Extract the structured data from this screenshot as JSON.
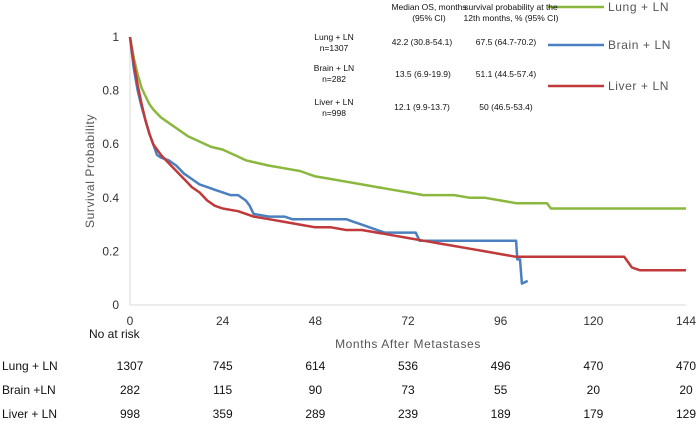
{
  "chart_data": {
    "type": "line",
    "xlabel": "Months After Metastases",
    "ylabel": "Survival Probability",
    "xlim": [
      0,
      144
    ],
    "ylim": [
      0,
      1
    ],
    "xticks": [
      "0",
      "24",
      "48",
      "72",
      "96",
      "120",
      "144"
    ],
    "yticks": [
      "0",
      "0.2",
      "0.4",
      "0.6",
      "0.8",
      "1"
    ],
    "series": [
      {
        "name": "Lung + LN",
        "color": "#8ab83f",
        "points": [
          [
            0,
            1
          ],
          [
            0.5,
            0.96
          ],
          [
            1,
            0.92
          ],
          [
            2,
            0.86
          ],
          [
            3,
            0.81
          ],
          [
            4,
            0.78
          ],
          [
            5,
            0.75
          ],
          [
            6,
            0.73
          ],
          [
            8,
            0.7
          ],
          [
            10,
            0.68
          ],
          [
            12,
            0.66
          ],
          [
            15,
            0.63
          ],
          [
            18,
            0.61
          ],
          [
            21,
            0.59
          ],
          [
            24,
            0.58
          ],
          [
            27,
            0.56
          ],
          [
            30,
            0.54
          ],
          [
            33,
            0.53
          ],
          [
            36,
            0.52
          ],
          [
            40,
            0.51
          ],
          [
            44,
            0.5
          ],
          [
            48,
            0.48
          ],
          [
            52,
            0.47
          ],
          [
            56,
            0.46
          ],
          [
            60,
            0.45
          ],
          [
            64,
            0.44
          ],
          [
            68,
            0.43
          ],
          [
            72,
            0.42
          ],
          [
            76,
            0.41
          ],
          [
            80,
            0.41
          ],
          [
            84,
            0.41
          ],
          [
            88,
            0.4
          ],
          [
            92,
            0.4
          ],
          [
            96,
            0.39
          ],
          [
            100,
            0.38
          ],
          [
            104,
            0.38
          ],
          [
            108,
            0.38
          ],
          [
            109,
            0.36
          ],
          [
            120,
            0.36
          ],
          [
            130,
            0.36
          ],
          [
            144,
            0.36
          ]
        ]
      },
      {
        "name": "Brain + LN",
        "color": "#4a7fc0",
        "points": [
          [
            0,
            1
          ],
          [
            0.5,
            0.94
          ],
          [
            1,
            0.88
          ],
          [
            2,
            0.8
          ],
          [
            3,
            0.74
          ],
          [
            4,
            0.69
          ],
          [
            5,
            0.64
          ],
          [
            6,
            0.6
          ],
          [
            7,
            0.56
          ],
          [
            8,
            0.55
          ],
          [
            10,
            0.54
          ],
          [
            12,
            0.52
          ],
          [
            14,
            0.49
          ],
          [
            16,
            0.47
          ],
          [
            18,
            0.45
          ],
          [
            20,
            0.44
          ],
          [
            22,
            0.43
          ],
          [
            24,
            0.42
          ],
          [
            26,
            0.41
          ],
          [
            28,
            0.41
          ],
          [
            30,
            0.39
          ],
          [
            31,
            0.37
          ],
          [
            32,
            0.34
          ],
          [
            36,
            0.33
          ],
          [
            40,
            0.33
          ],
          [
            42,
            0.32
          ],
          [
            56,
            0.32
          ],
          [
            58,
            0.31
          ],
          [
            60,
            0.3
          ],
          [
            62,
            0.29
          ],
          [
            64,
            0.28
          ],
          [
            66,
            0.27
          ],
          [
            74,
            0.27
          ],
          [
            75,
            0.24
          ],
          [
            100,
            0.24
          ],
          [
            100.3,
            0.17
          ],
          [
            101,
            0.17
          ],
          [
            101.5,
            0.08
          ],
          [
            103,
            0.09
          ]
        ]
      },
      {
        "name": "Liver + LN",
        "color": "#c0393b",
        "points": [
          [
            0,
            1
          ],
          [
            0.5,
            0.95
          ],
          [
            1,
            0.9
          ],
          [
            2,
            0.82
          ],
          [
            3,
            0.75
          ],
          [
            4,
            0.69
          ],
          [
            5,
            0.64
          ],
          [
            6,
            0.6
          ],
          [
            8,
            0.56
          ],
          [
            10,
            0.53
          ],
          [
            12,
            0.5
          ],
          [
            14,
            0.47
          ],
          [
            16,
            0.44
          ],
          [
            18,
            0.42
          ],
          [
            20,
            0.39
          ],
          [
            22,
            0.37
          ],
          [
            24,
            0.36
          ],
          [
            28,
            0.35
          ],
          [
            32,
            0.33
          ],
          [
            36,
            0.32
          ],
          [
            40,
            0.31
          ],
          [
            44,
            0.3
          ],
          [
            48,
            0.29
          ],
          [
            52,
            0.29
          ],
          [
            56,
            0.28
          ],
          [
            60,
            0.28
          ],
          [
            64,
            0.27
          ],
          [
            68,
            0.26
          ],
          [
            72,
            0.25
          ],
          [
            76,
            0.24
          ],
          [
            80,
            0.23
          ],
          [
            84,
            0.22
          ],
          [
            88,
            0.21
          ],
          [
            92,
            0.2
          ],
          [
            96,
            0.19
          ],
          [
            100,
            0.18
          ],
          [
            104,
            0.18
          ],
          [
            110,
            0.18
          ],
          [
            120,
            0.18
          ],
          [
            128,
            0.18
          ],
          [
            129,
            0.16
          ],
          [
            130,
            0.14
          ],
          [
            132,
            0.13
          ],
          [
            144,
            0.13
          ]
        ]
      }
    ]
  },
  "legend": [
    {
      "label": "Lung + LN",
      "color": "#8ab83f"
    },
    {
      "label": "Brain + LN",
      "color": "#4a7fc0"
    },
    {
      "label": "Liver + LN",
      "color": "#c0393b"
    }
  ],
  "stats_table": {
    "header_median": [
      "Median OS, months",
      "(95% CI)"
    ],
    "header_surv": [
      "survival probability at the",
      "12th months, % (95% CI)"
    ],
    "rows": [
      {
        "group": [
          "Lung + LN",
          "n=1307"
        ],
        "median": "42.2 (30.8-54.1)",
        "surv": "67.5 (64.7-70.2)"
      },
      {
        "group": [
          "Brain + LN",
          "n=282"
        ],
        "median": "13.5 (6.9-19.9)",
        "surv": "51.1 (44.5-57.4)"
      },
      {
        "group": [
          "Liver + LN",
          "n=998"
        ],
        "median": "12.1 (9.9-13.7)",
        "surv": "50 (46.5-53.4)"
      }
    ]
  },
  "risk_table": {
    "title": "No at risk",
    "rows": [
      {
        "label": "Lung + LN",
        "values": [
          "1307",
          "745",
          "614",
          "536",
          "496",
          "470",
          "470"
        ]
      },
      {
        "label": "Brain +LN",
        "values": [
          "282",
          "115",
          "90",
          "73",
          "55",
          "20",
          "20"
        ]
      },
      {
        "label": "Liver + LN",
        "values": [
          "998",
          "359",
          "289",
          "239",
          "189",
          "179",
          "129"
        ]
      }
    ]
  }
}
